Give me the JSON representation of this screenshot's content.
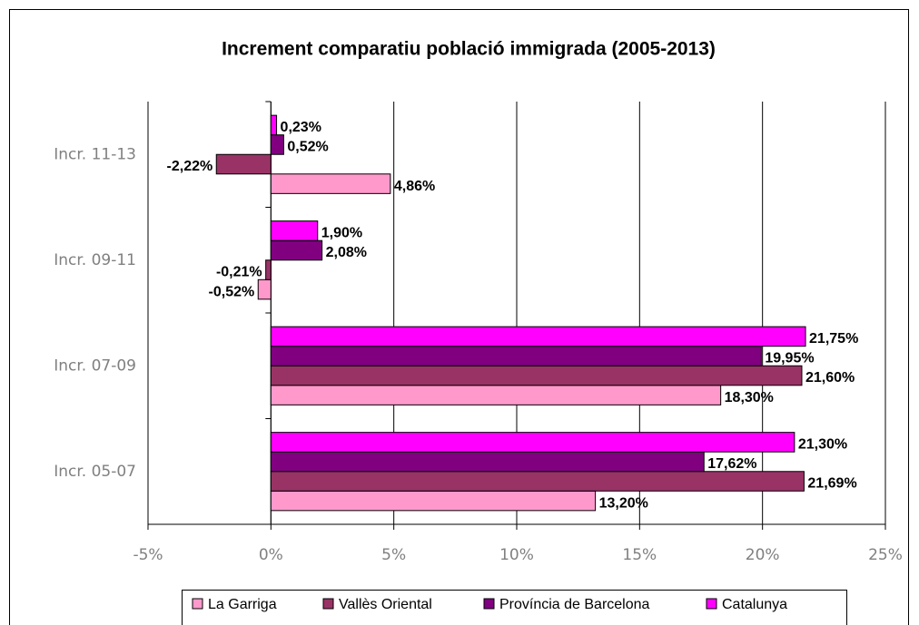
{
  "chart_data": {
    "type": "bar",
    "orientation": "horizontal",
    "title": "Increment comparatiu població immigrada (2005-2013)",
    "categories": [
      "Incr. 05-07",
      "Incr. 07-09",
      "Incr. 09-11",
      "Incr. 11-13"
    ],
    "series": [
      {
        "name": "La Garriga",
        "color": "#ff99cc",
        "values": [
          13.2,
          18.3,
          -0.52,
          4.86
        ],
        "value_labels": [
          "13,20%",
          "18,30%",
          "-0,52%",
          "4,86%"
        ]
      },
      {
        "name": "Vallès Oriental",
        "color": "#993366",
        "values": [
          21.69,
          21.6,
          -0.21,
          -2.22
        ],
        "value_labels": [
          "21,69%",
          "21,60%",
          "-0,21%",
          "-2,22%"
        ]
      },
      {
        "name": "Província de Barcelona",
        "color": "#800080",
        "values": [
          17.62,
          19.95,
          2.08,
          0.52
        ],
        "value_labels": [
          "17,62%",
          "19,95%",
          "2,08%",
          "0,52%"
        ]
      },
      {
        "name": "Catalunya",
        "color": "#ff00ff",
        "values": [
          21.3,
          21.75,
          1.9,
          0.23
        ],
        "value_labels": [
          "21,30%",
          "21,75%",
          "1,90%",
          "0,23%"
        ]
      }
    ],
    "xlim": [
      -5,
      25
    ],
    "xticks": [
      {
        "value": -5,
        "label": "-5%"
      },
      {
        "value": 0,
        "label": "0%"
      },
      {
        "value": 5,
        "label": "5%"
      },
      {
        "value": 10,
        "label": "10%"
      },
      {
        "value": 15,
        "label": "15%"
      },
      {
        "value": 20,
        "label": "20%"
      },
      {
        "value": 25,
        "label": "25%"
      }
    ],
    "grid": true,
    "legend": "bottom"
  }
}
